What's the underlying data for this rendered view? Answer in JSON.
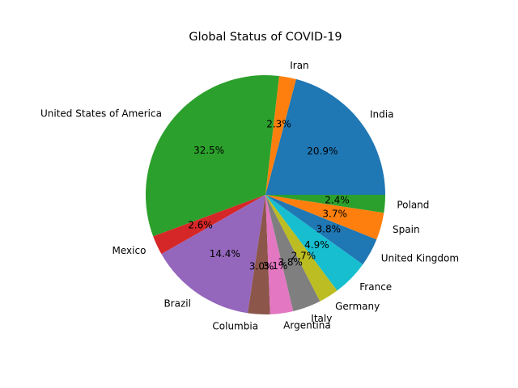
{
  "chart_data": {
    "type": "pie",
    "title": "Global Status of COVID-19",
    "labels": [
      "India",
      "Iran",
      "United States of America",
      "Mexico",
      "Brazil",
      "Columbia",
      "Argentina",
      "Italy",
      "Germany",
      "France",
      "United Kingdom",
      "Spain",
      "Poland"
    ],
    "values": [
      20.9,
      2.3,
      32.5,
      2.6,
      14.4,
      3.0,
      3.1,
      3.8,
      2.7,
      4.9,
      3.8,
      3.7,
      2.4
    ],
    "percent_labels": [
      "20.9%",
      "2.3%",
      "32.5%",
      "2.6%",
      "14.4%",
      "3.0%",
      "3.1%",
      "3.8%",
      "2.7%",
      "4.9%",
      "3.8%",
      "3.7%",
      "2.4%"
    ],
    "colors": [
      "#1f77b4",
      "#ff7f0e",
      "#2ca02c",
      "#d62728",
      "#9467bd",
      "#8c564b",
      "#e377c2",
      "#7f7f7f",
      "#bcbd22",
      "#17becf",
      "#1f77b4",
      "#ff7f0e",
      "#2ca02c"
    ],
    "start_angle": 0,
    "direction": "counterclockwise",
    "legend": "none"
  }
}
